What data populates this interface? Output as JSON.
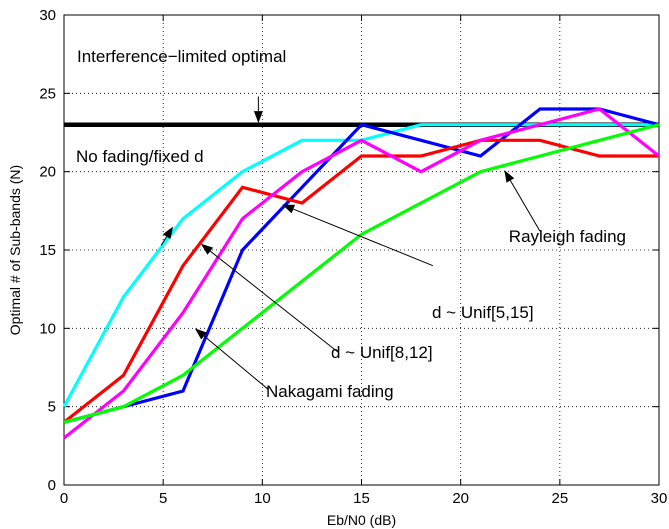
{
  "chart_data": {
    "type": "line",
    "title": "",
    "xlabel": "Eb/N0 (dB)",
    "ylabel": "Optimal # of Sub-bands (N)",
    "xlim": [
      0,
      30
    ],
    "ylim": [
      0,
      30
    ],
    "xticks": [
      0,
      5,
      10,
      15,
      20,
      25,
      30
    ],
    "yticks": [
      0,
      5,
      10,
      15,
      20,
      25,
      30
    ],
    "grid": true,
    "grid_style": "dotted",
    "series": [
      {
        "key": "limit",
        "color": "#000000",
        "x": [
          0,
          30
        ],
        "y": [
          23,
          23
        ]
      },
      {
        "key": "no_fading",
        "color": "#00ffff",
        "x": [
          0,
          3,
          6,
          9,
          12,
          15,
          18,
          21,
          24,
          27,
          30
        ],
        "y": [
          5,
          12,
          17,
          20,
          22,
          22,
          23,
          23,
          23,
          23,
          23
        ]
      },
      {
        "key": "unif_5_15",
        "color": "#0000ff",
        "x": [
          0,
          3,
          6,
          9,
          12,
          15,
          18,
          21,
          24,
          27,
          30
        ],
        "y": [
          4,
          5,
          6,
          15,
          19,
          23,
          22,
          21,
          24,
          24,
          23
        ]
      },
      {
        "key": "unif_8_12",
        "color": "#ff0000",
        "x": [
          0,
          3,
          6,
          9,
          12,
          15,
          18,
          21,
          24,
          27,
          30
        ],
        "y": [
          4,
          7,
          14,
          19,
          18,
          21,
          21,
          22,
          22,
          21,
          21
        ]
      },
      {
        "key": "nakagami",
        "color": "#ff00ff",
        "x": [
          0,
          3,
          6,
          9,
          12,
          15,
          18,
          21,
          24,
          27,
          30
        ],
        "y": [
          3,
          6,
          11,
          17,
          20,
          22,
          20,
          22,
          23,
          24,
          21
        ]
      },
      {
        "key": "rayleigh",
        "color": "#00ff00",
        "x": [
          0,
          3,
          6,
          9,
          12,
          15,
          18,
          21,
          24,
          27,
          30
        ],
        "y": [
          4,
          5,
          7,
          10,
          13,
          16,
          18,
          20,
          21,
          22,
          23
        ]
      }
    ],
    "annotations": [
      {
        "text": "Interference−limited optimal",
        "target": "limit",
        "arrow_from": [
          9.8,
          24.8
        ],
        "arrow_to": [
          9.8,
          23.1
        ]
      },
      {
        "text": "No fading/fixed d",
        "target": "no_fading",
        "arrow_from": [
          4.9,
          15.3
        ],
        "arrow_to": [
          5.5,
          16.5
        ]
      },
      {
        "text": "Rayleigh fading",
        "target": "rayleigh",
        "arrow_from": [
          24.0,
          16.2
        ],
        "arrow_to": [
          22.2,
          20.1
        ]
      },
      {
        "text": "d ~ Unif[5,15]",
        "target": "unif_5_15",
        "arrow_from": [
          18.6,
          14.0
        ],
        "arrow_to": [
          11.0,
          17.9
        ]
      },
      {
        "text": "d ~ Unif[8,12]",
        "target": "unif_8_12",
        "arrow_from": [
          13.8,
          8.5
        ],
        "arrow_to": [
          6.9,
          15.4
        ]
      },
      {
        "text": "Nakagami fading",
        "target": "nakagami",
        "arrow_from": [
          10.3,
          6.1
        ],
        "arrow_to": [
          6.6,
          10.0
        ]
      }
    ]
  }
}
